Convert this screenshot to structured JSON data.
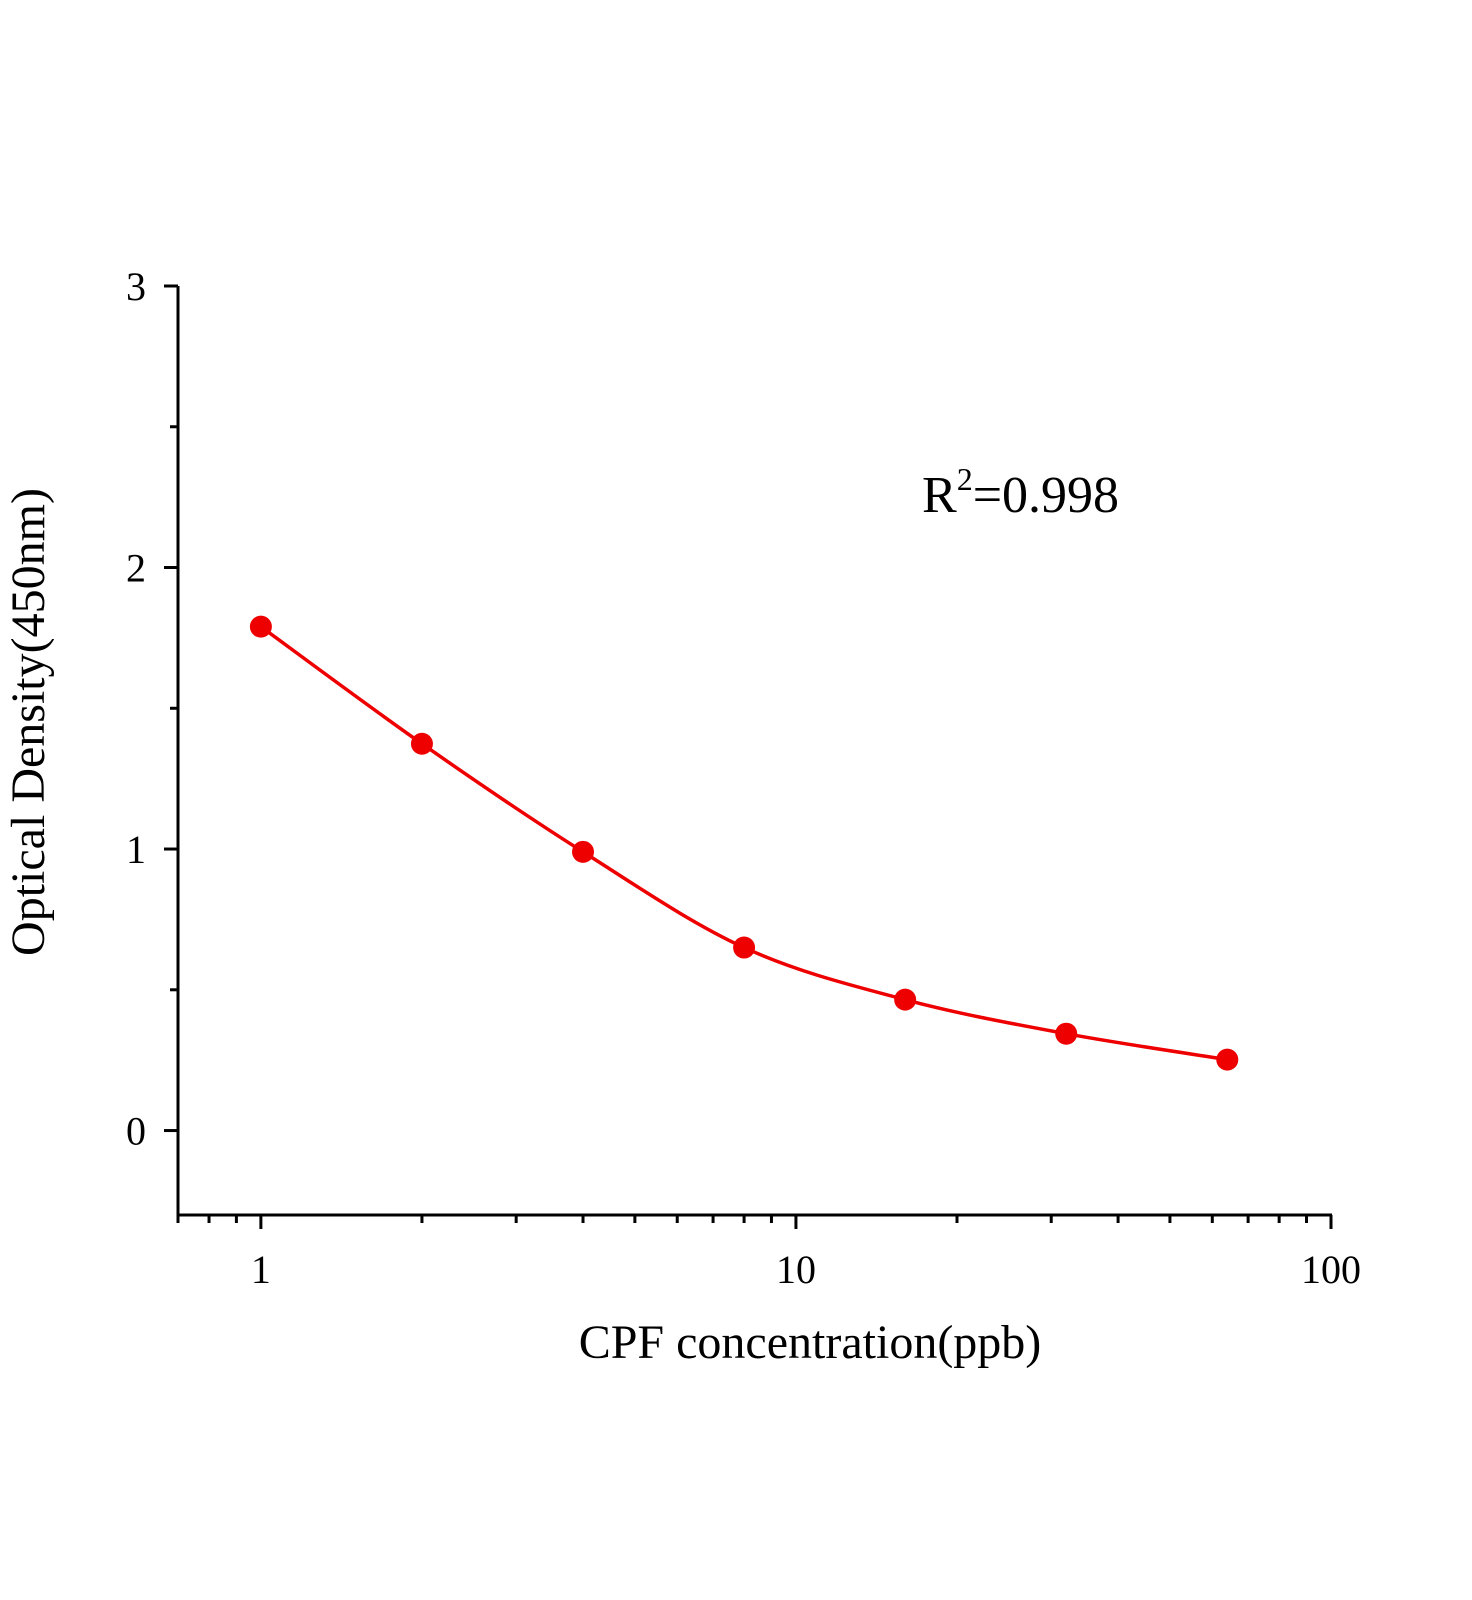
{
  "chart_data": {
    "type": "scatter",
    "xlabel": "CPF concentration(ppb)",
    "ylabel": "Optical Density(450nm)",
    "x_scale": "log",
    "xlim": [
      0.7,
      100
    ],
    "ylim": [
      -0.3,
      3
    ],
    "x_ticks": [
      "1",
      "10",
      "100"
    ],
    "y_ticks": [
      "0",
      "1",
      "2",
      "3"
    ],
    "grid": false,
    "annotation": {
      "base": "R",
      "sup": "2",
      "rest": "=0.998"
    },
    "color": "#ee0000",
    "series": [
      {
        "x": [
          1,
          2,
          4,
          8,
          16,
          32,
          64
        ],
        "y": [
          1.79,
          1.374,
          0.99,
          0.65,
          0.465,
          0.344,
          0.252
        ],
        "fit_line": true
      }
    ]
  }
}
